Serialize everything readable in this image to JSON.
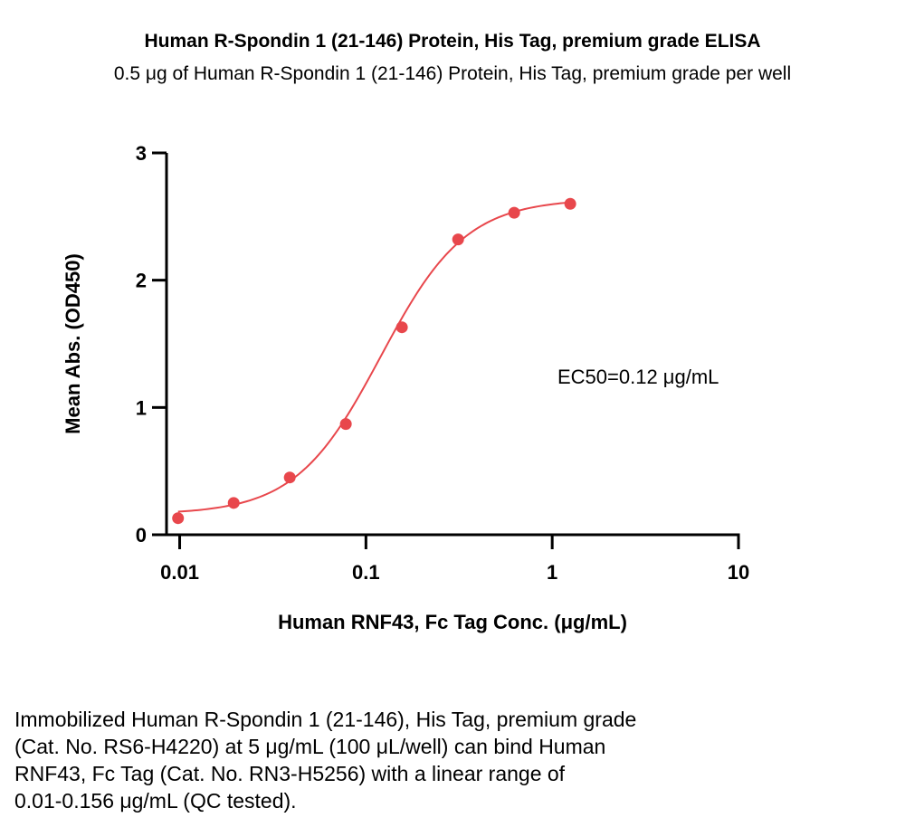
{
  "chart_data": {
    "type": "scatter",
    "title": "Human R-Spondin 1 (21-146) Protein, His Tag, premium grade ELISA",
    "subtitle": "0.5 μg of Human R-Spondin 1 (21-146) Protein, His Tag, premium grade per well",
    "xlabel": "Human RNF43, Fc Tag Conc. (μg/mL)",
    "ylabel": "Mean Abs. (OD450)",
    "xscale": "log",
    "xlim": [
      0.0085,
      10
    ],
    "ylim": [
      0,
      3
    ],
    "x_ticks": [
      0.01,
      0.1,
      1,
      10
    ],
    "x_tick_labels": [
      "0.01",
      "0.1",
      "1",
      "10"
    ],
    "y_ticks": [
      0,
      1,
      2,
      3
    ],
    "y_tick_labels": [
      "0",
      "1",
      "2",
      "3"
    ],
    "grid": false,
    "series": [
      {
        "color": "#e8474c",
        "x": [
          0.0098,
          0.0195,
          0.039,
          0.078,
          0.156,
          0.3125,
          0.625,
          1.25
        ],
        "y": [
          0.13,
          0.25,
          0.45,
          0.87,
          1.63,
          2.32,
          2.53,
          2.6
        ]
      }
    ],
    "annotation": "EC50=0.12 μg/mL"
  },
  "caption": {
    "lines": [
      "Immobilized Human R-Spondin 1 (21-146), His Tag, premium grade",
      "(Cat. No. RS6-H4220) at 5 μg/mL (100 μL/well) can bind Human",
      "RNF43, Fc Tag (Cat. No. RN3-H5256) with a linear range of",
      "0.01-0.156 μg/mL (QC tested)."
    ]
  }
}
